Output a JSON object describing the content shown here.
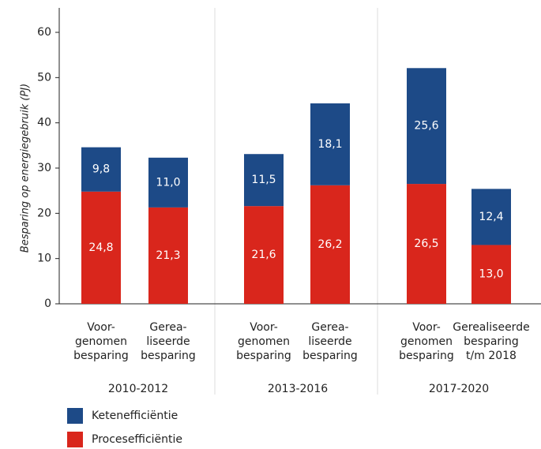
{
  "chart_data": {
    "type": "stacked-bar",
    "y_label": "Besparing op energiegebruik (PJ)",
    "categories": [
      [
        "Voor-",
        "genomen",
        "besparing"
      ],
      [
        "Gerea-",
        "liseerde",
        "besparing"
      ],
      [
        "Voor-",
        "genomen",
        "besparing"
      ],
      [
        "Gerea-",
        "liseerde",
        "besparing"
      ],
      [
        "Voor-",
        "genomen",
        "besparing"
      ],
      [
        "Gerealiseerde",
        "besparing",
        "t/m 2018"
      ]
    ],
    "groups": [
      "2010-2012",
      "2013-2016",
      "2017-2020"
    ],
    "series": [
      {
        "name": "Procesefficiëntie",
        "color": "#d9261c",
        "values": [
          24.8,
          21.3,
          21.6,
          26.2,
          26.5,
          13.0
        ],
        "value_labels": [
          "24,8",
          "21,3",
          "21,6",
          "26,2",
          "26,5",
          "13,0"
        ]
      },
      {
        "name": "Ketenefficiëntie",
        "color": "#1d4a87",
        "values": [
          9.8,
          11.0,
          11.5,
          18.1,
          25.6,
          12.4
        ],
        "value_labels": [
          "9,8",
          "11,0",
          "11,5",
          "18,1",
          "25,6",
          "12,4"
        ]
      }
    ],
    "ylim": [
      0,
      60
    ],
    "yticks": [
      0,
      10,
      20,
      30,
      40,
      50,
      60
    ]
  }
}
